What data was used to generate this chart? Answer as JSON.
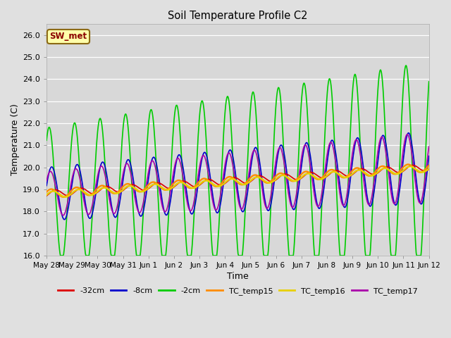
{
  "title": "Soil Temperature Profile C2",
  "xlabel": "Time",
  "ylabel": "Temperature (C)",
  "ylim": [
    16.0,
    26.5
  ],
  "yticks": [
    16.0,
    17.0,
    18.0,
    19.0,
    20.0,
    21.0,
    22.0,
    23.0,
    24.0,
    25.0,
    26.0
  ],
  "fig_bg": "#e0e0e0",
  "plot_bg": "#d8d8d8",
  "annotation_text": "SW_met",
  "annotation_fg": "#8b0000",
  "annotation_bg": "#ffffaa",
  "annotation_edge": "#8b6914",
  "line_colors": {
    "-32cm": "#dd0000",
    "-8cm": "#0000cc",
    "-2cm": "#00cc00",
    "TC_temp15": "#ff8c00",
    "TC_temp16": "#e8d000",
    "TC_temp17": "#aa00aa"
  },
  "legend_labels": [
    "-32cm",
    "-8cm",
    "-2cm",
    "TC_temp15",
    "TC_temp16",
    "TC_temp17"
  ],
  "x_tick_labels": [
    "May 28",
    "May 29",
    "May 30",
    "May 31",
    "Jun 1",
    "Jun 2",
    "Jun 3",
    "Jun 4",
    "Jun 5",
    "Jun 6",
    "Jun 7",
    "Jun 8",
    "Jun 9",
    "Jun 10",
    "Jun 11",
    "Jun 12"
  ],
  "n_days": 15,
  "samples_per_day": 48
}
